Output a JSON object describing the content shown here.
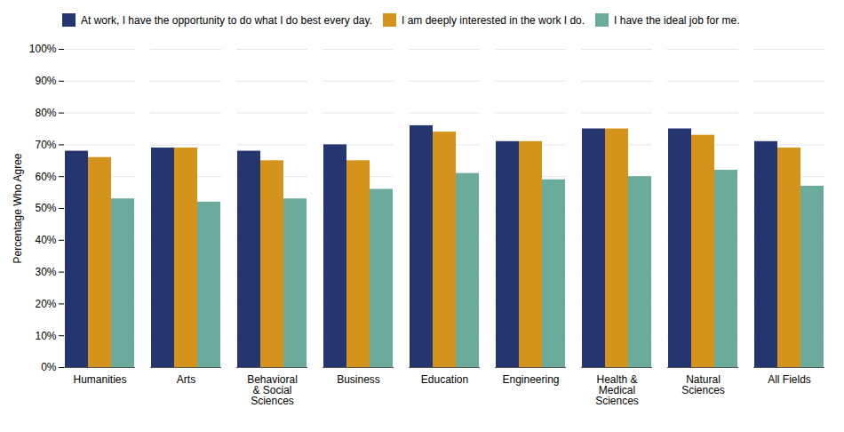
{
  "chart_data": {
    "type": "bar",
    "categories": [
      "Humanities",
      "Arts",
      "Behavioral\n& Social\nSciences",
      "Business",
      "Education",
      "Engineering",
      "Health &\nMedical\nSciences",
      "Natural\nSciences",
      "All Fields"
    ],
    "series": [
      {
        "name": "At work, I have the opportunity to do what I do best every day.",
        "color": "#253570",
        "values": [
          68,
          69,
          68,
          70,
          76,
          71,
          75,
          75,
          71
        ]
      },
      {
        "name": "I am deeply interested in the work I do.",
        "color": "#d4931a",
        "values": [
          66,
          69,
          65,
          65,
          74,
          71,
          75,
          73,
          69
        ]
      },
      {
        "name": "I have the ideal job for me.",
        "color": "#6aab9b",
        "values": [
          53,
          52,
          53,
          56,
          61,
          59,
          60,
          62,
          57
        ]
      }
    ],
    "ylabel": "Percentage Who Agree",
    "ylim": [
      0,
      100
    ],
    "yticks": [
      {
        "value": 0,
        "label": "0%"
      },
      {
        "value": 10,
        "label": "10%"
      },
      {
        "value": 20,
        "label": "20%"
      },
      {
        "value": 30,
        "label": "30%"
      },
      {
        "value": 40,
        "label": "40%"
      },
      {
        "value": 50,
        "label": "50%"
      },
      {
        "value": 60,
        "label": "60%"
      },
      {
        "value": 70,
        "label": "70%"
      },
      {
        "value": 80,
        "label": "80%"
      },
      {
        "value": 90,
        "label": "90%"
      },
      {
        "value": 100,
        "label": "100%"
      }
    ],
    "grid": true,
    "legend": "top"
  }
}
